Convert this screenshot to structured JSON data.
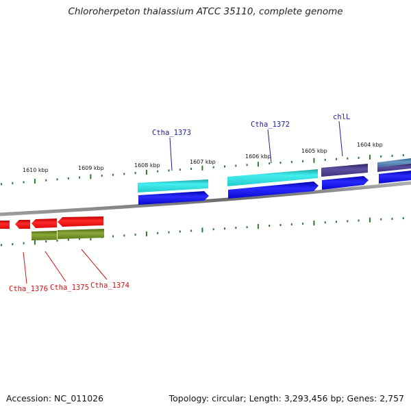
{
  "header": {
    "title": "Chloroherpeton thalassium ATCC 35110, complete genome"
  },
  "footer": {
    "accession": "Accession: NC_011026",
    "summary": "Topology: circular; Length: 3,293,456 bp; Genes: 2,757"
  },
  "colors": {
    "background": "#ffffff",
    "tick": "#2a7a2a",
    "backbone": "#8a8a8a",
    "label_blue": "#1a1aa0",
    "label_red": "#cc1111",
    "cds_cyan": "#33dddd",
    "cds_blue": "#1111ee",
    "cds_purple": "#4d3f86",
    "cds_steel": "#4d7aa6",
    "cds_red": "#ee1111",
    "cds_olive": "#6f8a22"
  },
  "scale_labels": [
    "1610 kbp",
    "1609 kbp",
    "1608 kbp",
    "1607 kbp",
    "1606 kbp",
    "1605 kbp",
    "1604 kbp"
  ],
  "gene_labels": {
    "top": [
      "Ctha_1373",
      "Ctha_1372",
      "chlL"
    ],
    "bottom": [
      "Ctha_1376",
      "Ctha_1375",
      "Ctha_1374"
    ]
  }
}
